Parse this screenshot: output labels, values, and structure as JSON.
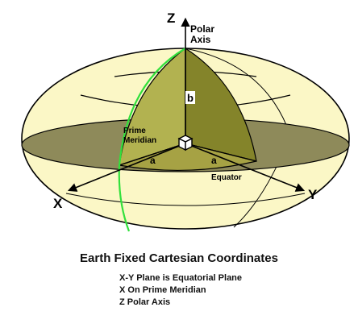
{
  "diagram": {
    "axis_labels": {
      "x": "X",
      "y": "Y",
      "z": "Z"
    },
    "polar_axis_label": [
      "Polar",
      "Axis"
    ],
    "prime_meridian_label": [
      "Prime",
      "Meridian"
    ],
    "equator_label": "Equator",
    "semi_major_label": "a",
    "semi_minor_label": "b",
    "colors": {
      "ellipsoid_fill": "#fbf7c6",
      "equatorial_plane": "#8e8a5a",
      "wedge_light": "#b2b250",
      "wedge_dark": "#84842a",
      "prime_meridian": "#32e03c",
      "outline": "#000000"
    }
  },
  "caption": {
    "title": "Earth Fixed Cartesian Coordinates",
    "notes": [
      "X-Y Plane is Equatorial Plane",
      "X On Prime Meridian",
      "Z  Polar Axis"
    ]
  }
}
